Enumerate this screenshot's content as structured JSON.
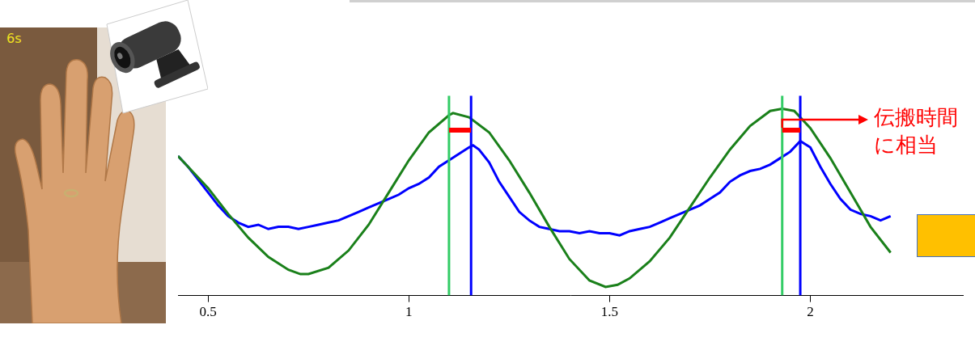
{
  "photo_label": "6s",
  "chart_data": {
    "type": "line",
    "xlim": [
      0.425,
      2.38
    ],
    "xticks": [
      0.5,
      1,
      1.5,
      2
    ],
    "ylim": [
      0,
      1
    ],
    "tick_labels": "x",
    "grid": false,
    "annotation": "伝搬時間に相当",
    "series": [
      {
        "color": "#1a801a",
        "x": [
          0.425,
          0.45,
          0.5,
          0.55,
          0.6,
          0.65,
          0.7,
          0.73,
          0.75,
          0.8,
          0.85,
          0.9,
          0.95,
          1.0,
          1.05,
          1.1,
          1.11,
          1.15,
          1.2,
          1.25,
          1.3,
          1.35,
          1.4,
          1.45,
          1.49,
          1.52,
          1.55,
          1.6,
          1.65,
          1.7,
          1.75,
          1.8,
          1.85,
          1.9,
          1.93,
          1.96,
          2.0,
          2.05,
          2.1,
          2.15,
          2.2
        ],
        "values": [
          0.65,
          0.6,
          0.5,
          0.38,
          0.27,
          0.18,
          0.12,
          0.1,
          0.1,
          0.13,
          0.21,
          0.33,
          0.48,
          0.63,
          0.76,
          0.84,
          0.85,
          0.83,
          0.76,
          0.63,
          0.48,
          0.32,
          0.17,
          0.07,
          0.04,
          0.05,
          0.08,
          0.16,
          0.27,
          0.41,
          0.55,
          0.68,
          0.79,
          0.86,
          0.87,
          0.86,
          0.78,
          0.64,
          0.48,
          0.32,
          0.2
        ]
      },
      {
        "color": "#0000ff",
        "x": [
          0.425,
          0.45,
          0.475,
          0.5,
          0.525,
          0.55,
          0.575,
          0.6,
          0.625,
          0.65,
          0.675,
          0.7,
          0.725,
          0.75,
          0.775,
          0.8,
          0.825,
          0.85,
          0.875,
          0.9,
          0.925,
          0.95,
          0.975,
          1.0,
          1.025,
          1.05,
          1.075,
          1.1,
          1.125,
          1.15,
          1.16,
          1.175,
          1.2,
          1.225,
          1.25,
          1.275,
          1.3,
          1.325,
          1.35,
          1.375,
          1.4,
          1.425,
          1.45,
          1.475,
          1.5,
          1.525,
          1.55,
          1.575,
          1.6,
          1.625,
          1.65,
          1.675,
          1.7,
          1.725,
          1.75,
          1.775,
          1.8,
          1.825,
          1.85,
          1.875,
          1.9,
          1.925,
          1.95,
          1.975,
          2.0,
          2.025,
          2.05,
          2.075,
          2.1,
          2.125,
          2.15,
          2.175,
          2.2
        ],
        "values": [
          0.65,
          0.6,
          0.54,
          0.48,
          0.42,
          0.37,
          0.34,
          0.32,
          0.33,
          0.31,
          0.32,
          0.32,
          0.31,
          0.32,
          0.33,
          0.34,
          0.35,
          0.37,
          0.39,
          0.41,
          0.43,
          0.45,
          0.47,
          0.5,
          0.52,
          0.55,
          0.6,
          0.63,
          0.66,
          0.69,
          0.7,
          0.68,
          0.62,
          0.53,
          0.46,
          0.39,
          0.35,
          0.32,
          0.31,
          0.3,
          0.3,
          0.29,
          0.3,
          0.29,
          0.29,
          0.28,
          0.3,
          0.31,
          0.32,
          0.34,
          0.36,
          0.38,
          0.4,
          0.42,
          0.45,
          0.48,
          0.53,
          0.56,
          0.58,
          0.59,
          0.61,
          0.64,
          0.67,
          0.72,
          0.69,
          0.6,
          0.52,
          0.45,
          0.4,
          0.38,
          0.37,
          0.35,
          0.37
        ]
      }
    ],
    "peak_lines": [
      {
        "x": 1.1,
        "top": 0.93,
        "color": "#33cc66"
      },
      {
        "x": 1.155,
        "top": 0.93,
        "color": "#0000ff"
      },
      {
        "x": 1.93,
        "top": 0.93,
        "color": "#33cc66"
      },
      {
        "x": 1.975,
        "top": 0.93,
        "color": "#0000ff"
      }
    ],
    "delays": [
      {
        "from": 1.1,
        "to": 1.155,
        "y": 0.77,
        "color": "#ff0000"
      },
      {
        "from": 1.93,
        "to": 1.975,
        "y": 0.77,
        "color": "#ff0000"
      }
    ]
  }
}
